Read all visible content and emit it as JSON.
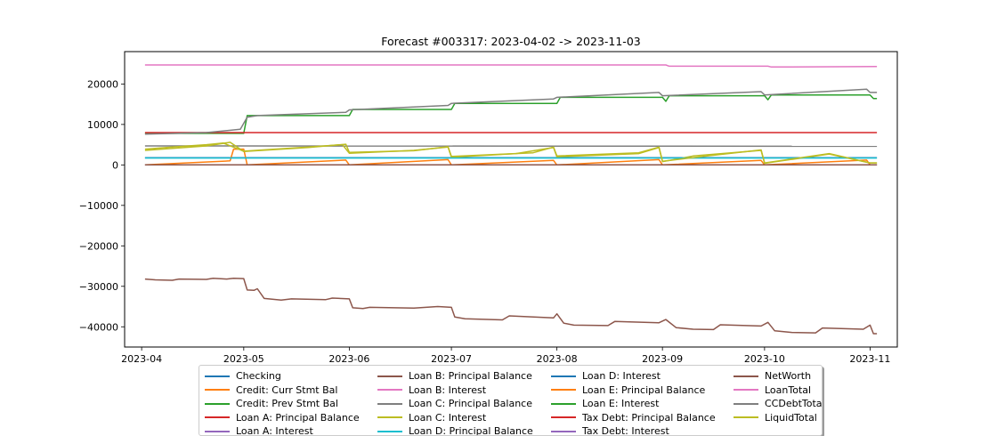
{
  "chart_data": {
    "type": "line",
    "title": "Forecast #003317: 2023-04-02 -> 2023-11-03",
    "xlabel": "",
    "ylabel": "",
    "xlim": [
      "2023-03-27",
      "2023-11-09"
    ],
    "ylim": [
      -45000,
      28000
    ],
    "x_ticks": [
      "2023-04",
      "2023-05",
      "2023-06",
      "2023-07",
      "2023-08",
      "2023-09",
      "2023-10",
      "2023-11"
    ],
    "y_ticks": [
      20000,
      10000,
      0,
      -10000,
      -20000,
      -30000,
      -40000
    ],
    "y_tick_labels": [
      "20000",
      "10000",
      "0",
      "−10000",
      "−20000",
      "−30000",
      "−40000"
    ],
    "grid": false,
    "legend_placement": "bottom-center",
    "series": [
      {
        "name": "Checking",
        "color": "#1f77b4",
        "points": [
          [
            "2023-04-02",
            1800
          ],
          [
            "2023-11-03",
            1800
          ]
        ]
      },
      {
        "name": "Credit: Curr Stmt Bal",
        "color": "#ff7f0e",
        "points": [
          [
            "2023-04-02",
            0
          ],
          [
            "2023-04-27",
            1000
          ],
          [
            "2023-04-28",
            3900
          ],
          [
            "2023-05-01",
            3900
          ],
          [
            "2023-05-02",
            0
          ],
          [
            "2023-05-31",
            1200
          ],
          [
            "2023-06-01",
            0
          ],
          [
            "2023-06-30",
            1300
          ],
          [
            "2023-07-01",
            0
          ],
          [
            "2023-07-31",
            1100
          ],
          [
            "2023-08-01",
            0
          ],
          [
            "2023-08-31",
            1300
          ],
          [
            "2023-09-01",
            0
          ],
          [
            "2023-09-30",
            1100
          ],
          [
            "2023-10-01",
            0
          ],
          [
            "2023-10-31",
            1200
          ],
          [
            "2023-11-01",
            0
          ],
          [
            "2023-11-03",
            0
          ]
        ]
      },
      {
        "name": "Credit: Prev Stmt Bal",
        "color": "#2ca02c",
        "points": [
          [
            "2023-04-02",
            7800
          ],
          [
            "2023-05-01",
            7800
          ],
          [
            "2023-05-02",
            12200
          ],
          [
            "2023-06-01",
            12200
          ],
          [
            "2023-06-02",
            13700
          ],
          [
            "2023-07-01",
            13700
          ],
          [
            "2023-07-02",
            15200
          ],
          [
            "2023-08-01",
            15200
          ],
          [
            "2023-08-02",
            16700
          ],
          [
            "2023-09-01",
            16700
          ],
          [
            "2023-09-02",
            15700
          ],
          [
            "2023-09-03",
            17100
          ],
          [
            "2023-10-01",
            17100
          ],
          [
            "2023-10-02",
            16100
          ],
          [
            "2023-10-03",
            17300
          ],
          [
            "2023-11-01",
            17300
          ],
          [
            "2023-11-02",
            16400
          ],
          [
            "2023-11-03",
            16400
          ]
        ]
      },
      {
        "name": "Loan A: Principal Balance",
        "color": "#d62728",
        "points": [
          [
            "2023-04-02",
            8000
          ],
          [
            "2023-11-03",
            8000
          ]
        ]
      },
      {
        "name": "Loan A: Interest",
        "color": "#9467bd",
        "points": [
          [
            "2023-04-02",
            0
          ],
          [
            "2023-11-03",
            0
          ]
        ]
      },
      {
        "name": "Loan B: Principal Balance",
        "color": "#8c564b",
        "points": [
          [
            "2023-04-02",
            -28200
          ],
          [
            "2023-04-05",
            -28400
          ],
          [
            "2023-04-10",
            -28500
          ],
          [
            "2023-04-12",
            -28200
          ],
          [
            "2023-04-20",
            -28300
          ],
          [
            "2023-04-22",
            -28000
          ],
          [
            "2023-04-26",
            -28200
          ],
          [
            "2023-04-28",
            -28000
          ],
          [
            "2023-05-01",
            -28100
          ],
          [
            "2023-05-02",
            -30900
          ],
          [
            "2023-05-04",
            -31000
          ],
          [
            "2023-05-05",
            -30600
          ],
          [
            "2023-05-07",
            -33000
          ],
          [
            "2023-05-12",
            -33400
          ],
          [
            "2023-05-15",
            -33100
          ],
          [
            "2023-05-25",
            -33300
          ],
          [
            "2023-05-27",
            -32900
          ],
          [
            "2023-06-01",
            -33100
          ],
          [
            "2023-06-02",
            -35300
          ],
          [
            "2023-06-05",
            -35500
          ],
          [
            "2023-06-07",
            -35200
          ],
          [
            "2023-06-20",
            -35400
          ],
          [
            "2023-06-27",
            -35000
          ],
          [
            "2023-07-01",
            -35200
          ],
          [
            "2023-07-02",
            -37600
          ],
          [
            "2023-07-05",
            -38000
          ],
          [
            "2023-07-16",
            -38300
          ],
          [
            "2023-07-18",
            -37300
          ],
          [
            "2023-07-31",
            -37800
          ],
          [
            "2023-08-01",
            -36800
          ],
          [
            "2023-08-03",
            -39100
          ],
          [
            "2023-08-06",
            -39600
          ],
          [
            "2023-08-16",
            -39700
          ],
          [
            "2023-08-18",
            -38700
          ],
          [
            "2023-08-31",
            -39000
          ],
          [
            "2023-09-02",
            -38200
          ],
          [
            "2023-09-05",
            -40200
          ],
          [
            "2023-09-10",
            -40600
          ],
          [
            "2023-09-16",
            -40700
          ],
          [
            "2023-09-18",
            -39500
          ],
          [
            "2023-09-30",
            -39800
          ],
          [
            "2023-10-02",
            -38900
          ],
          [
            "2023-10-04",
            -41000
          ],
          [
            "2023-10-09",
            -41400
          ],
          [
            "2023-10-16",
            -41500
          ],
          [
            "2023-10-18",
            -40300
          ],
          [
            "2023-10-30",
            -40600
          ],
          [
            "2023-11-01",
            -39600
          ],
          [
            "2023-11-02",
            -41700
          ],
          [
            "2023-11-03",
            -41700
          ]
        ]
      },
      {
        "name": "Loan B: Interest",
        "color": "#e377c2",
        "points": [
          [
            "2023-04-02",
            24700
          ],
          [
            "2023-09-02",
            24700
          ],
          [
            "2023-09-03",
            24400
          ],
          [
            "2023-10-02",
            24400
          ],
          [
            "2023-10-03",
            24200
          ],
          [
            "2023-11-03",
            24300
          ]
        ]
      },
      {
        "name": "Loan C: Principal Balance",
        "color": "#7f7f7f",
        "points": [
          [
            "2023-04-02",
            4700
          ],
          [
            "2023-11-03",
            4600
          ]
        ]
      },
      {
        "name": "Loan C: Interest",
        "color": "#bcbd22",
        "points": [
          [
            "2023-04-02",
            3900
          ],
          [
            "2023-04-10",
            4400
          ],
          [
            "2023-04-20",
            5000
          ],
          [
            "2023-04-25",
            5400
          ],
          [
            "2023-05-01",
            3400
          ],
          [
            "2023-05-20",
            4400
          ],
          [
            "2023-05-30",
            5000
          ],
          [
            "2023-06-01",
            2900
          ],
          [
            "2023-06-20",
            3600
          ],
          [
            "2023-06-30",
            4400
          ],
          [
            "2023-07-01",
            1900
          ],
          [
            "2023-07-20",
            2800
          ],
          [
            "2023-07-31",
            4300
          ],
          [
            "2023-08-01",
            2000
          ],
          [
            "2023-08-25",
            2800
          ],
          [
            "2023-08-31",
            4300
          ],
          [
            "2023-09-01",
            800
          ],
          [
            "2023-09-10",
            2200
          ],
          [
            "2023-09-30",
            3600
          ],
          [
            "2023-10-01",
            400
          ],
          [
            "2023-10-20",
            2700
          ],
          [
            "2023-11-01",
            500
          ],
          [
            "2023-11-03",
            500
          ]
        ]
      },
      {
        "name": "Loan D: Principal Balance",
        "color": "#17becf",
        "points": [
          [
            "2023-04-02",
            1700
          ],
          [
            "2023-11-03",
            1700
          ]
        ]
      },
      {
        "name": "NetWorth",
        "color": "#8c564b",
        "points": [
          [
            "2023-04-02",
            0
          ],
          [
            "2023-11-03",
            0
          ]
        ]
      },
      {
        "name": "CCDebtTotal",
        "color": "#7f7f7f",
        "points": [
          [
            "2023-04-02",
            7600
          ],
          [
            "2023-04-20",
            8000
          ],
          [
            "2023-04-30",
            8800
          ],
          [
            "2023-05-02",
            11800
          ],
          [
            "2023-05-05",
            12200
          ],
          [
            "2023-05-31",
            13000
          ],
          [
            "2023-06-01",
            13600
          ],
          [
            "2023-06-30",
            14700
          ],
          [
            "2023-07-01",
            15200
          ],
          [
            "2023-07-31",
            16300
          ],
          [
            "2023-08-01",
            16700
          ],
          [
            "2023-08-31",
            17900
          ],
          [
            "2023-09-01",
            17100
          ],
          [
            "2023-09-30",
            18100
          ],
          [
            "2023-10-01",
            17300
          ],
          [
            "2023-10-31",
            18700
          ],
          [
            "2023-11-01",
            17900
          ],
          [
            "2023-11-03",
            17900
          ]
        ]
      },
      {
        "name": "LiquidTotal",
        "color": "#bcbd22",
        "points": [
          [
            "2023-04-02",
            3600
          ],
          [
            "2023-04-20",
            4700
          ],
          [
            "2023-04-27",
            5600
          ],
          [
            "2023-05-01",
            3300
          ],
          [
            "2023-05-20",
            4300
          ],
          [
            "2023-05-31",
            5100
          ],
          [
            "2023-06-01",
            3100
          ],
          [
            "2023-06-20",
            3500
          ],
          [
            "2023-06-30",
            4500
          ],
          [
            "2023-07-01",
            2100
          ],
          [
            "2023-07-25",
            3000
          ],
          [
            "2023-07-31",
            4400
          ],
          [
            "2023-08-01",
            2200
          ],
          [
            "2023-08-25",
            3000
          ],
          [
            "2023-08-31",
            4400
          ],
          [
            "2023-09-01",
            900
          ],
          [
            "2023-09-15",
            2300
          ],
          [
            "2023-09-30",
            3700
          ],
          [
            "2023-10-01",
            500
          ],
          [
            "2023-10-20",
            2800
          ],
          [
            "2023-11-01",
            500
          ],
          [
            "2023-11-03",
            500
          ]
        ]
      }
    ]
  },
  "legend": {
    "columns": [
      [
        {
          "label": "Checking",
          "color": "#1f77b4"
        },
        {
          "label": "Credit: Curr Stmt Bal",
          "color": "#ff7f0e"
        },
        {
          "label": "Credit: Prev Stmt Bal",
          "color": "#2ca02c"
        },
        {
          "label": "Loan A: Principal Balance",
          "color": "#d62728"
        },
        {
          "label": "Loan A: Interest",
          "color": "#9467bd"
        }
      ],
      [
        {
          "label": "Loan B: Principal Balance",
          "color": "#8c564b"
        },
        {
          "label": "Loan B: Interest",
          "color": "#e377c2"
        },
        {
          "label": "Loan C: Principal Balance",
          "color": "#7f7f7f"
        },
        {
          "label": "Loan C: Interest",
          "color": "#bcbd22"
        },
        {
          "label": "Loan D: Principal Balance",
          "color": "#17becf"
        }
      ],
      [
        {
          "label": "Loan D: Interest",
          "color": "#1f77b4"
        },
        {
          "label": "Loan E: Principal Balance",
          "color": "#ff7f0e"
        },
        {
          "label": "Loan E: Interest",
          "color": "#2ca02c"
        },
        {
          "label": "Tax Debt: Principal Balance",
          "color": "#d62728"
        },
        {
          "label": "Tax Debt: Interest",
          "color": "#9467bd"
        }
      ],
      [
        {
          "label": "NetWorth",
          "color": "#8c564b"
        },
        {
          "label": "LoanTotal",
          "color": "#e377c2"
        },
        {
          "label": "CCDebtTotal",
          "color": "#7f7f7f"
        },
        {
          "label": "LiquidTotal",
          "color": "#bcbd22"
        }
      ]
    ]
  }
}
